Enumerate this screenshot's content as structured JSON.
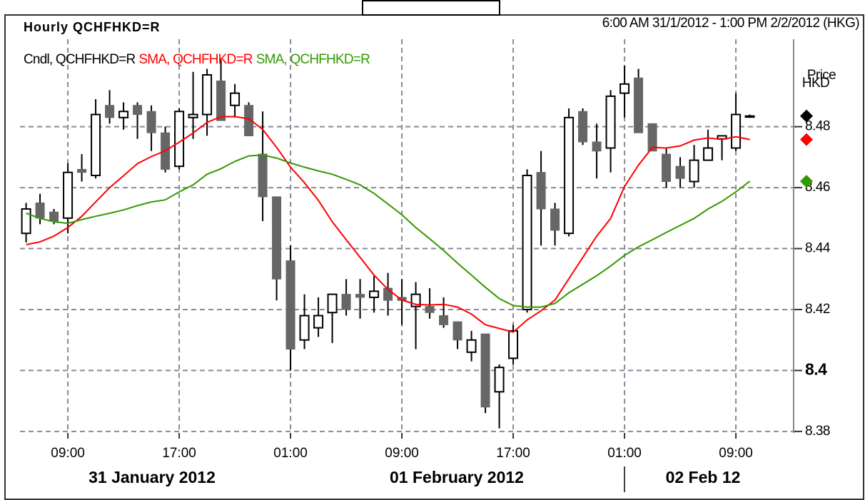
{
  "chart_data": {
    "type": "candlestick",
    "title": "Hourly QCHFHKD=R",
    "subtitle": "6:00 AM 31/1/2012 - 1:00 PM 2/2/2012 (HKG)",
    "y_label": [
      "Price",
      "HKD"
    ],
    "x": [
      0,
      1,
      2,
      3,
      4,
      5,
      6,
      7,
      8,
      9,
      10,
      11,
      12,
      13,
      14,
      15,
      16,
      17,
      18,
      19,
      20,
      21,
      22,
      23,
      24,
      25,
      26,
      27,
      28,
      29,
      30,
      31,
      32,
      33,
      34,
      35,
      36,
      37,
      38,
      39,
      40,
      41,
      42,
      43,
      44,
      45,
      46,
      47,
      48,
      49,
      50,
      51,
      52
    ],
    "xlim": [
      -0.44,
      55.15
    ],
    "xticks": [
      {
        "value": 3,
        "label": "09:00"
      },
      {
        "value": 11,
        "label": "17:00"
      },
      {
        "value": 19,
        "label": "01:00"
      },
      {
        "value": 27,
        "label": "09:00"
      },
      {
        "value": 35,
        "label": "17:00"
      },
      {
        "value": 43,
        "label": "01:00"
      },
      {
        "value": 51,
        "label": "09:00"
      }
    ],
    "date_labels": [
      "31 January 2012",
      "01 February 2012",
      "02 Feb 12"
    ],
    "ylim": [
      8.3795,
      8.5087
    ],
    "yticks": [
      8.38,
      8.4,
      8.42,
      8.44,
      8.46,
      8.48
    ],
    "grid": true,
    "series": [
      {
        "name": "Cndl, QCHFHKD=R",
        "color": "#000000",
        "up_color": "#ffffff",
        "down_color": "#666666",
        "open": [
          8.445,
          8.455,
          8.452,
          8.45,
          8.466,
          8.464,
          8.487,
          8.483,
          8.487,
          8.485,
          8.478,
          8.467,
          8.483,
          8.484,
          8.495,
          8.487,
          8.487,
          8.471,
          8.457,
          8.436,
          8.41,
          8.414,
          8.419,
          8.425,
          8.425,
          8.424,
          8.427,
          8.424,
          8.421,
          8.421,
          8.418,
          8.416,
          8.406,
          8.412,
          8.393,
          8.404,
          8.42,
          8.465,
          8.453,
          8.445,
          8.485,
          8.475,
          8.473,
          8.491,
          8.496,
          8.481,
          8.471,
          8.467,
          8.462,
          8.469,
          8.476,
          8.473,
          8.4835
        ],
        "high": [
          8.455,
          8.458,
          8.453,
          8.468,
          8.471,
          8.489,
          8.492,
          8.488,
          8.488,
          8.487,
          8.48,
          8.486,
          8.498,
          8.499,
          8.502,
          8.494,
          8.488,
          8.485,
          8.457,
          8.441,
          8.425,
          8.424,
          8.425,
          8.43,
          8.43,
          8.431,
          8.432,
          8.43,
          8.429,
          8.427,
          8.424,
          8.416,
          8.413,
          8.412,
          8.402,
          8.415,
          8.466,
          8.472,
          8.455,
          8.486,
          8.486,
          8.481,
          8.492,
          8.5,
          8.499,
          8.481,
          8.473,
          8.47,
          8.474,
          8.479,
          8.477,
          8.491,
          8.484
        ],
        "low": [
          8.442,
          8.448,
          8.448,
          8.445,
          8.462,
          8.463,
          8.481,
          8.479,
          8.476,
          8.472,
          8.465,
          8.466,
          8.476,
          8.477,
          8.482,
          8.483,
          8.477,
          8.449,
          8.423,
          8.4,
          8.407,
          8.411,
          8.409,
          8.418,
          8.417,
          8.419,
          8.418,
          8.415,
          8.407,
          8.417,
          8.414,
          8.407,
          8.403,
          8.386,
          8.381,
          8.402,
          8.419,
          8.441,
          8.441,
          8.444,
          8.474,
          8.463,
          8.465,
          8.483,
          8.478,
          8.472,
          8.46,
          8.46,
          8.46,
          8.469,
          8.469,
          8.472,
          8.483
        ],
        "close": [
          8.453,
          8.45,
          8.449,
          8.465,
          8.465,
          8.484,
          8.483,
          8.485,
          8.484,
          8.478,
          8.466,
          8.485,
          8.484,
          8.497,
          8.482,
          8.491,
          8.477,
          8.457,
          8.43,
          8.407,
          8.418,
          8.418,
          8.425,
          8.42,
          8.424,
          8.426,
          8.423,
          8.423,
          8.425,
          8.419,
          8.415,
          8.41,
          8.41,
          8.388,
          8.401,
          8.413,
          8.464,
          8.453,
          8.446,
          8.483,
          8.475,
          8.472,
          8.49,
          8.494,
          8.478,
          8.472,
          8.462,
          8.463,
          8.469,
          8.473,
          8.477,
          8.484,
          8.4835
        ]
      },
      {
        "name": "SMA, QCHFHKD=R",
        "color": "#ff0000",
        "values": [
          8.4413,
          8.4422,
          8.4441,
          8.4469,
          8.4506,
          8.4553,
          8.46,
          8.4639,
          8.4679,
          8.4702,
          8.4721,
          8.4749,
          8.4779,
          8.4814,
          8.4833,
          8.4833,
          8.4826,
          8.4791,
          8.4732,
          8.4667,
          8.4616,
          8.4558,
          8.4488,
          8.4429,
          8.4371,
          8.4313,
          8.4266,
          8.4231,
          8.4217,
          8.4215,
          8.4217,
          8.4208,
          8.4185,
          8.415,
          8.4138,
          8.4126,
          8.4166,
          8.4196,
          8.4231,
          8.4301,
          8.4371,
          8.4441,
          8.4499,
          8.4604,
          8.4674,
          8.4732,
          8.473,
          8.4737,
          8.4756,
          8.4763,
          8.4758,
          8.4767,
          8.4758
        ]
      },
      {
        "name": "SMA, QCHFHKD=R",
        "color": "#339900",
        "values": [
          8.4516,
          8.4499,
          8.4488,
          8.4483,
          8.4495,
          8.4506,
          8.4516,
          8.4527,
          8.4541,
          8.4553,
          8.456,
          8.4586,
          8.4609,
          8.4644,
          8.4662,
          8.4686,
          8.4704,
          8.4707,
          8.4697,
          8.4681,
          8.4667,
          8.4655,
          8.4644,
          8.4627,
          8.4609,
          8.4581,
          8.4546,
          8.4511,
          8.4469,
          8.4432,
          8.4394,
          8.4352,
          8.4313,
          8.4273,
          8.4236,
          8.4213,
          8.4208,
          8.4208,
          8.422,
          8.4255,
          8.4283,
          8.4311,
          8.4343,
          8.4378,
          8.4406,
          8.4429,
          8.4453,
          8.4476,
          8.4499,
          8.453,
          8.4555,
          8.4586,
          8.4621
        ]
      }
    ]
  }
}
